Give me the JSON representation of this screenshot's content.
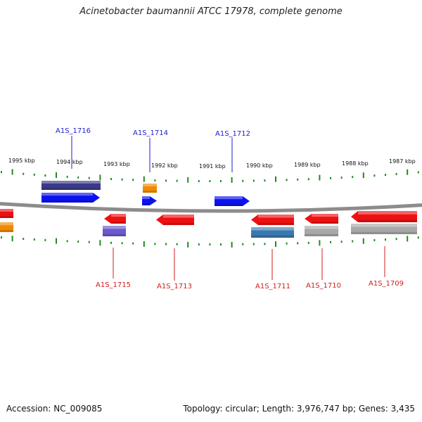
{
  "title": "Acinetobacter baumannii ATCC 17978, complete genome",
  "footer": {
    "accession": "Accession: NC_009085",
    "summary": "Topology: circular; Length: 3,976,747 bp; Genes: 3,435"
  },
  "scale_labels": [
    "1995 kbp",
    "1994 kbp",
    "1993 kbp",
    "1992 kbp",
    "1991 kbp",
    "1990 kbp",
    "1989 kbp",
    "1988 kbp",
    "1987 kbp"
  ],
  "colors": {
    "backbone": "#8c8c8c",
    "ticks": "#1f8a1f",
    "label_top": "#1c1cd0",
    "label_bottom": "#d01c1c",
    "gene_blue": "#0a12f0",
    "gene_navy": "#3a3a88",
    "gene_orange": "#f08a00",
    "gene_red": "#ee1111",
    "gene_purple": "#6a5acd",
    "gene_steel": "#3a78b0",
    "gene_gray": "#a8a8a8"
  },
  "gene_labels_top": [
    "A1S_1716",
    "A1S_1714",
    "A1S_1712"
  ],
  "gene_labels_bottom": [
    "A1S_1715",
    "A1S_1713",
    "A1S_1711",
    "A1S_1710",
    "A1S_1709"
  ]
}
